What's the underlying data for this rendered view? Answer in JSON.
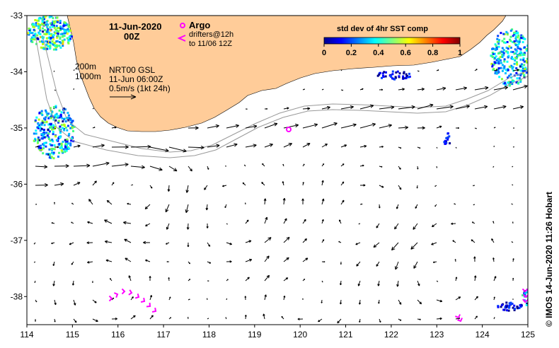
{
  "map": {
    "date": "11-Jun-2020",
    "hour": "00Z",
    "lon_range": [
      114,
      125
    ],
    "lat_range": [
      -38.5,
      -33
    ],
    "x_ticks": [
      "114",
      "115",
      "116",
      "117",
      "118",
      "119",
      "120",
      "121",
      "122",
      "123",
      "124",
      "125"
    ],
    "y_ticks": [
      "-33",
      "-34",
      "-35",
      "-36",
      "-37",
      "-38"
    ],
    "land_color": "#FFCC99",
    "current_arrow_color": "#000000",
    "isobath_color": "#999999"
  },
  "legend": {
    "argo_label": "Argo",
    "drifters_line1": "drifters@12h",
    "drifters_line2": "to 11/06 12Z",
    "marker_color": "#FF00FF"
  },
  "isobaths": {
    "label_200": "200m",
    "label_1000": "1000m"
  },
  "product": {
    "line1": "NRT00 GSL",
    "line2": "11-Jun 06:00Z",
    "scale_label": "0.5m/s (1kt 24h)"
  },
  "colorbar": {
    "title": "std dev of 4hr SST comp",
    "ticks": [
      "0",
      "0.2",
      "0.4",
      "0.6",
      "0.8",
      "1"
    ]
  },
  "credit": "© IMOS 14-Jun-2020 11:26 Hobart"
}
